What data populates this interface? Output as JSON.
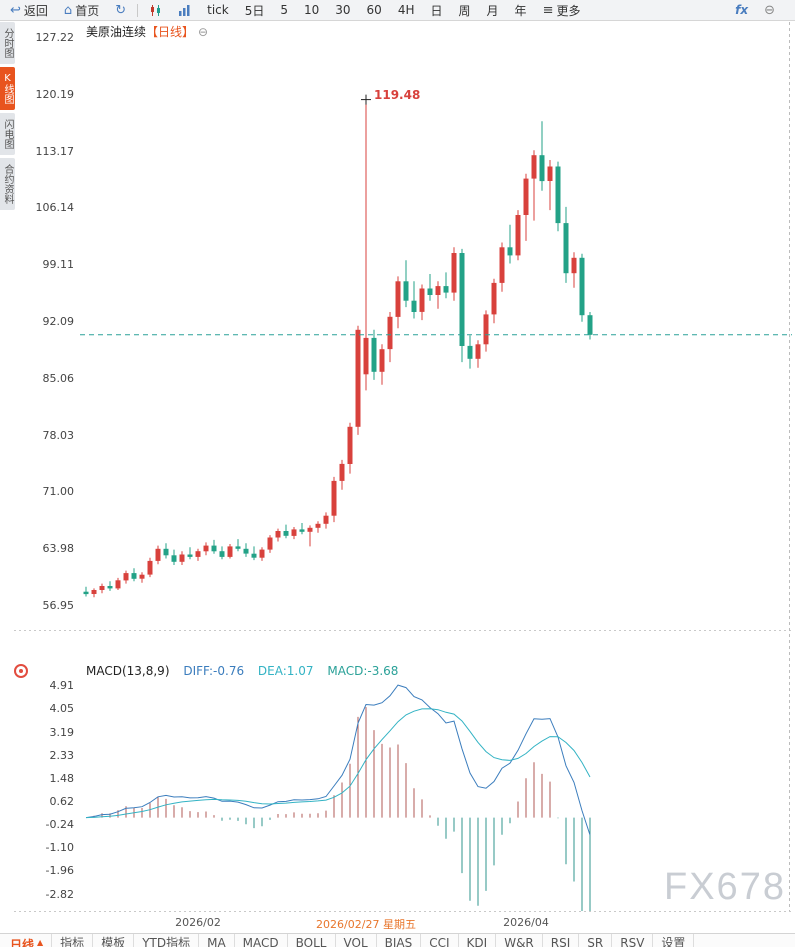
{
  "colors": {
    "up": "#d8413c",
    "down": "#23a287",
    "accent": "#e8541e",
    "priceline": "#2aa198",
    "diff": "#3b7dbd",
    "dea": "#33b3c4",
    "histUp": "#b05a56",
    "histDown": "#2f948c",
    "toolbarIcon": "#4a7dbf"
  },
  "toolbar": {
    "items": [
      {
        "name": "back-button",
        "icon": "↩",
        "label": "返回"
      },
      {
        "name": "home-button",
        "icon": "⌂",
        "label": "首页"
      },
      {
        "name": "refresh-button",
        "icon": "↻",
        "label": ""
      },
      {
        "type": "separator"
      },
      {
        "name": "kline-chart-button",
        "svg": "candles",
        "label": ""
      },
      {
        "name": "volume-chart-button",
        "svg": "bars",
        "label": ""
      },
      {
        "name": "period-tick-button",
        "label": "tick"
      },
      {
        "name": "period-5day-button",
        "label": "5日"
      },
      {
        "name": "period-5min-button",
        "label": "5"
      },
      {
        "name": "period-10min-button",
        "label": "10"
      },
      {
        "name": "period-30min-button",
        "label": "30"
      },
      {
        "name": "period-60min-button",
        "label": "60"
      },
      {
        "name": "period-4h-button",
        "label": "4H"
      },
      {
        "name": "period-day-button",
        "label": "日"
      },
      {
        "name": "period-week-button",
        "label": "周"
      },
      {
        "name": "period-month-button",
        "label": "月"
      },
      {
        "name": "period-year-button",
        "label": "年"
      },
      {
        "name": "more-button",
        "icon": "≡",
        "icon_color": "#444",
        "label": "更多"
      },
      {
        "name": "fx-button",
        "label": "fx",
        "fx": true,
        "push_right": true
      },
      {
        "name": "zoom-out-button",
        "icon": "⊖",
        "icon_color": "#888",
        "label": ""
      }
    ]
  },
  "sidebar": {
    "tabs": [
      {
        "name": "tab-time-chart",
        "label": "分时图",
        "active": false
      },
      {
        "name": "tab-kline-chart",
        "label": "K线图",
        "active": true
      },
      {
        "name": "tab-lightning-chart",
        "label": "闪电图",
        "active": false
      },
      {
        "name": "tab-contract-info",
        "label": "合约资料",
        "active": false
      }
    ]
  },
  "chart": {
    "title": "美原油连续",
    "title_period": "【日线】",
    "collapse_icon": "⊖",
    "annotation_price": "119.48"
  },
  "macd": {
    "label": "MACD(13,8,9)",
    "diff_label": "DIFF:-0.76",
    "dea_label": "DEA:1.07",
    "macd_label": "MACD:-3.68"
  },
  "bottom": {
    "period_label": "日线",
    "period_arrow": "▲",
    "tabs": [
      {
        "name": "btab-indicator",
        "label": "指标"
      },
      {
        "name": "btab-template",
        "label": "模板"
      },
      {
        "name": "btab-ytd-indicator",
        "label": "YTD指标"
      },
      {
        "name": "btab-ma",
        "label": "MA"
      },
      {
        "name": "btab-macd",
        "label": "MACD"
      },
      {
        "name": "btab-boll",
        "label": "BOLL"
      },
      {
        "name": "btab-vol",
        "label": "VOL"
      },
      {
        "name": "btab-bias",
        "label": "BIAS"
      },
      {
        "name": "btab-cci",
        "label": "CCI"
      },
      {
        "name": "btab-kdj",
        "label": "KDJ"
      },
      {
        "name": "btab-wr",
        "label": "W&R"
      },
      {
        "name": "btab-rsi",
        "label": "RSI"
      },
      {
        "name": "btab-sr",
        "label": "SR"
      },
      {
        "name": "btab-rsv",
        "label": "RSV"
      },
      {
        "name": "btab-settings",
        "label": "设置"
      }
    ]
  },
  "watermark": "FX678",
  "chart_data": {
    "type": "candlestick",
    "symbol": "美原油连续",
    "period": "日线",
    "convention": "red-up-green-down",
    "y_axis_ticks": [
      127.22,
      120.19,
      113.17,
      106.14,
      99.11,
      92.09,
      85.06,
      78.03,
      71.0,
      63.98,
      56.95
    ],
    "marked_high": 119.48,
    "last_close": 90.38,
    "x_axis_labels": [
      {
        "index": 14,
        "text": "2026/02",
        "highlight": false
      },
      {
        "index": 35,
        "text": "2026/02/27 星期五",
        "highlight": true
      },
      {
        "index": 55,
        "text": "2026/04",
        "highlight": false
      }
    ],
    "ohlc": [
      [
        58.6,
        59.2,
        58.0,
        58.3
      ],
      [
        58.3,
        59.0,
        57.9,
        58.8
      ],
      [
        58.8,
        59.6,
        58.4,
        59.3
      ],
      [
        59.3,
        59.9,
        58.7,
        59.0
      ],
      [
        59.0,
        60.3,
        58.8,
        60.0
      ],
      [
        60.0,
        61.2,
        59.6,
        60.9
      ],
      [
        60.9,
        61.5,
        59.9,
        60.2
      ],
      [
        60.2,
        61.0,
        59.7,
        60.7
      ],
      [
        60.7,
        62.8,
        60.4,
        62.4
      ],
      [
        62.4,
        64.3,
        62.0,
        63.9
      ],
      [
        63.9,
        64.6,
        62.7,
        63.1
      ],
      [
        63.1,
        63.8,
        61.9,
        62.3
      ],
      [
        62.3,
        63.6,
        61.9,
        63.2
      ],
      [
        63.2,
        64.1,
        62.6,
        62.9
      ],
      [
        62.9,
        63.9,
        62.4,
        63.6
      ],
      [
        63.6,
        64.7,
        63.1,
        64.3
      ],
      [
        64.3,
        65.0,
        63.3,
        63.6
      ],
      [
        63.6,
        64.2,
        62.6,
        62.9
      ],
      [
        62.9,
        64.5,
        62.7,
        64.2
      ],
      [
        64.2,
        65.1,
        63.6,
        63.9
      ],
      [
        63.9,
        64.6,
        62.9,
        63.3
      ],
      [
        63.3,
        64.2,
        62.5,
        62.8
      ],
      [
        62.8,
        64.1,
        62.4,
        63.8
      ],
      [
        63.8,
        65.6,
        63.4,
        65.3
      ],
      [
        65.3,
        66.4,
        64.8,
        66.1
      ],
      [
        66.1,
        66.9,
        65.2,
        65.5
      ],
      [
        65.5,
        66.6,
        65.1,
        66.3
      ],
      [
        66.3,
        67.1,
        65.7,
        66.0
      ],
      [
        66.0,
        66.8,
        64.2,
        66.5
      ],
      [
        66.5,
        67.3,
        65.9,
        67.0
      ],
      [
        67.0,
        68.4,
        66.4,
        68.0
      ],
      [
        68.0,
        72.8,
        67.2,
        72.3
      ],
      [
        72.3,
        74.9,
        71.2,
        74.4
      ],
      [
        74.4,
        79.5,
        73.2,
        79.0
      ],
      [
        79.0,
        91.5,
        78.0,
        91.0
      ],
      [
        85.5,
        119.48,
        83.5,
        90.0
      ],
      [
        90.0,
        91.0,
        84.8,
        85.8
      ],
      [
        85.8,
        89.2,
        84.2,
        88.6
      ],
      [
        88.6,
        93.2,
        87.0,
        92.6
      ],
      [
        92.6,
        97.6,
        91.2,
        97.0
      ],
      [
        97.0,
        99.6,
        93.8,
        94.6
      ],
      [
        94.6,
        97.0,
        92.4,
        93.2
      ],
      [
        93.2,
        96.6,
        92.2,
        96.1
      ],
      [
        96.1,
        97.9,
        94.6,
        95.3
      ],
      [
        95.3,
        97.0,
        93.6,
        96.4
      ],
      [
        96.4,
        98.1,
        94.9,
        95.6
      ],
      [
        95.6,
        101.2,
        94.6,
        100.5
      ],
      [
        100.5,
        101.0,
        87.0,
        89.0
      ],
      [
        89.0,
        90.3,
        86.2,
        87.4
      ],
      [
        87.4,
        89.7,
        86.3,
        89.2
      ],
      [
        89.2,
        93.4,
        88.3,
        92.9
      ],
      [
        92.9,
        97.3,
        91.8,
        96.8
      ],
      [
        96.8,
        101.8,
        95.7,
        101.2
      ],
      [
        101.2,
        104.0,
        99.2,
        100.2
      ],
      [
        100.2,
        105.8,
        99.6,
        105.2
      ],
      [
        105.2,
        110.3,
        102.0,
        109.7
      ],
      [
        109.7,
        113.2,
        104.5,
        112.6
      ],
      [
        112.6,
        116.8,
        108.2,
        109.4
      ],
      [
        109.4,
        112.0,
        105.8,
        111.2
      ],
      [
        111.2,
        111.8,
        103.2,
        104.2
      ],
      [
        104.2,
        106.2,
        96.8,
        98.0
      ],
      [
        98.0,
        100.6,
        96.2,
        99.9
      ],
      [
        99.9,
        100.4,
        92.0,
        92.8
      ],
      [
        92.8,
        93.2,
        89.8,
        90.38
      ]
    ],
    "indicator": {
      "type": "macd",
      "params": [
        13,
        8,
        9
      ],
      "diff": -0.76,
      "dea": 1.07,
      "macd": -3.68,
      "y_ticks": [
        4.91,
        4.05,
        3.19,
        2.33,
        1.48,
        0.62,
        -0.24,
        -1.1,
        -1.96,
        -2.82
      ]
    }
  }
}
